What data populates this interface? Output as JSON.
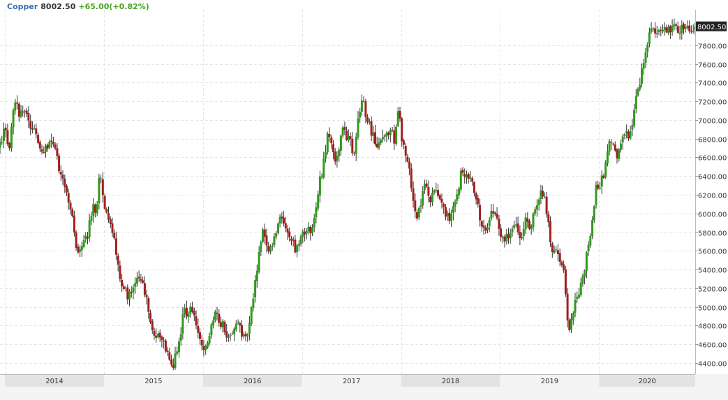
{
  "header": {
    "symbol": "Copper",
    "price": "8002.50",
    "change": "+65.00(+0.82%)"
  },
  "last_price_label": "8002.50",
  "colors": {
    "up": "#2f9a1c",
    "down": "#a11f1f",
    "wick": "#333333",
    "grid": "#e6e6e6",
    "axis_band": "#e3e3e3",
    "header_symbol": "#3a6fb7",
    "header_change": "#4aa021"
  },
  "chart_data": {
    "type": "candlestick",
    "frequency": "weekly",
    "grid": true,
    "ylim": [
      4280,
      8180
    ],
    "y_ticks": [
      "4400.00",
      "4600.00",
      "4800.00",
      "5000.00",
      "5200.00",
      "5400.00",
      "5600.00",
      "5800.00",
      "6000.00",
      "6200.00",
      "6400.00",
      "6600.00",
      "6800.00",
      "7000.00",
      "7200.00",
      "7400.00",
      "7600.00",
      "7800.00"
    ],
    "x_ticks": [
      "2014",
      "2015",
      "2016",
      "2017",
      "2018",
      "2019",
      "2020"
    ],
    "x_range": [
      2013.95,
      2020.97
    ],
    "anchors": [
      [
        2013.95,
        6700
      ],
      [
        2013.99,
        6820
      ],
      [
        2014.03,
        6920
      ],
      [
        2014.06,
        6650
      ],
      [
        2014.1,
        7100
      ],
      [
        2014.13,
        7160
      ],
      [
        2014.17,
        7050
      ],
      [
        2014.21,
        7150
      ],
      [
        2014.25,
        7000
      ],
      [
        2014.29,
        6920
      ],
      [
        2014.33,
        6850
      ],
      [
        2014.37,
        6700
      ],
      [
        2014.4,
        6650
      ],
      [
        2014.44,
        6700
      ],
      [
        2014.48,
        6720
      ],
      [
        2014.52,
        6700
      ],
      [
        2014.55,
        6550
      ],
      [
        2014.58,
        6400
      ],
      [
        2014.61,
        6300
      ],
      [
        2014.64,
        6200
      ],
      [
        2014.68,
        6050
      ],
      [
        2014.71,
        5850
      ],
      [
        2014.74,
        5600
      ],
      [
        2014.78,
        5600
      ],
      [
        2014.82,
        5700
      ],
      [
        2014.86,
        5800
      ],
      [
        2014.9,
        6050
      ],
      [
        2014.94,
        6050
      ],
      [
        2014.98,
        6450
      ],
      [
        2015.02,
        6100
      ],
      [
        2015.06,
        5900
      ],
      [
        2015.1,
        5800
      ],
      [
        2015.14,
        5600
      ],
      [
        2015.17,
        5350
      ],
      [
        2015.22,
        5200
      ],
      [
        2015.27,
        5100
      ],
      [
        2015.31,
        5200
      ],
      [
        2015.36,
        5300
      ],
      [
        2015.4,
        5250
      ],
      [
        2015.44,
        5100
      ],
      [
        2015.48,
        4900
      ],
      [
        2015.51,
        4700
      ],
      [
        2015.55,
        4650
      ],
      [
        2015.59,
        4700
      ],
      [
        2015.63,
        4600
      ],
      [
        2015.67,
        4500
      ],
      [
        2015.71,
        4350
      ],
      [
        2015.75,
        4500
      ],
      [
        2015.79,
        4700
      ],
      [
        2015.83,
        5000
      ],
      [
        2015.87,
        4900
      ],
      [
        2015.91,
        5000
      ],
      [
        2015.95,
        4750
      ],
      [
        2015.99,
        4650
      ],
      [
        2016.03,
        4520
      ],
      [
        2016.07,
        4600
      ],
      [
        2016.1,
        4780
      ],
      [
        2016.14,
        4900
      ],
      [
        2016.18,
        4850
      ],
      [
        2016.22,
        4800
      ],
      [
        2016.26,
        4700
      ],
      [
        2016.3,
        4660
      ],
      [
        2016.34,
        4800
      ],
      [
        2016.38,
        4800
      ],
      [
        2016.42,
        4700
      ],
      [
        2016.45,
        4650
      ],
      [
        2016.49,
        4850
      ],
      [
        2016.54,
        5200
      ],
      [
        2016.58,
        5500
      ],
      [
        2016.62,
        5800
      ],
      [
        2016.66,
        5700
      ],
      [
        2016.7,
        5600
      ],
      [
        2016.75,
        5800
      ],
      [
        2016.79,
        5900
      ],
      [
        2016.83,
        5950
      ],
      [
        2016.87,
        5850
      ],
      [
        2016.91,
        5750
      ],
      [
        2016.95,
        5600
      ],
      [
        2016.99,
        5700
      ],
      [
        2017.03,
        5850
      ],
      [
        2017.07,
        5800
      ],
      [
        2017.11,
        5850
      ],
      [
        2017.15,
        6000
      ],
      [
        2017.19,
        6300
      ],
      [
        2017.23,
        6500
      ],
      [
        2017.27,
        6800
      ],
      [
        2017.31,
        6850
      ],
      [
        2017.35,
        6500
      ],
      [
        2017.39,
        6700
      ],
      [
        2017.43,
        6900
      ],
      [
        2017.47,
        6800
      ],
      [
        2017.51,
        6750
      ],
      [
        2017.55,
        6600
      ],
      [
        2017.59,
        7050
      ],
      [
        2017.63,
        7200
      ],
      [
        2017.67,
        7050
      ],
      [
        2017.71,
        6900
      ],
      [
        2017.75,
        6800
      ],
      [
        2017.79,
        6700
      ],
      [
        2017.83,
        6850
      ],
      [
        2017.87,
        6800
      ],
      [
        2017.91,
        6900
      ],
      [
        2017.95,
        6800
      ],
      [
        2017.99,
        7100
      ],
      [
        2018.03,
        6800
      ],
      [
        2018.07,
        6600
      ],
      [
        2018.11,
        6400
      ],
      [
        2018.15,
        6100
      ],
      [
        2018.19,
        5950
      ],
      [
        2018.23,
        6200
      ],
      [
        2018.27,
        6300
      ],
      [
        2018.31,
        6100
      ],
      [
        2018.35,
        6250
      ],
      [
        2018.39,
        6200
      ],
      [
        2018.43,
        6100
      ],
      [
        2018.47,
        6000
      ],
      [
        2018.51,
        5950
      ],
      [
        2018.55,
        6100
      ],
      [
        2018.59,
        6200
      ],
      [
        2018.63,
        6450
      ],
      [
        2018.67,
        6350
      ],
      [
        2018.71,
        6450
      ],
      [
        2018.75,
        6300
      ],
      [
        2018.79,
        6100
      ],
      [
        2018.83,
        5900
      ],
      [
        2018.87,
        5800
      ],
      [
        2018.91,
        5950
      ],
      [
        2018.95,
        6000
      ],
      [
        2018.99,
        5900
      ],
      [
        2019.03,
        5750
      ],
      [
        2019.07,
        5700
      ],
      [
        2019.11,
        5800
      ],
      [
        2019.15,
        5900
      ],
      [
        2019.19,
        5850
      ],
      [
        2019.23,
        5750
      ],
      [
        2019.27,
        5950
      ],
      [
        2019.31,
        5850
      ],
      [
        2019.35,
        5950
      ],
      [
        2019.39,
        6100
      ],
      [
        2019.43,
        6200
      ],
      [
        2019.47,
        6200
      ],
      [
        2019.51,
        5850
      ],
      [
        2019.55,
        5600
      ],
      [
        2019.59,
        5650
      ],
      [
        2019.63,
        5500
      ],
      [
        2019.67,
        5300
      ],
      [
        2019.71,
        4750
      ],
      [
        2019.75,
        4850
      ],
      [
        2019.79,
        5100
      ],
      [
        2019.83,
        5200
      ],
      [
        2019.87,
        5400
      ],
      [
        2019.91,
        5650
      ],
      [
        2019.95,
        5950
      ],
      [
        2019.99,
        6300
      ],
      [
        2020.03,
        6300
      ],
      [
        2020.07,
        6450
      ],
      [
        2020.11,
        6700
      ],
      [
        2020.15,
        6800
      ],
      [
        2020.19,
        6600
      ],
      [
        2020.23,
        6650
      ],
      [
        2020.27,
        6900
      ],
      [
        2020.31,
        6800
      ],
      [
        2020.35,
        6950
      ],
      [
        2020.39,
        7200
      ],
      [
        2020.43,
        7400
      ],
      [
        2020.47,
        7650
      ],
      [
        2020.51,
        7850
      ],
      [
        2020.55,
        7950
      ],
      [
        2020.97,
        8002.5
      ]
    ]
  }
}
